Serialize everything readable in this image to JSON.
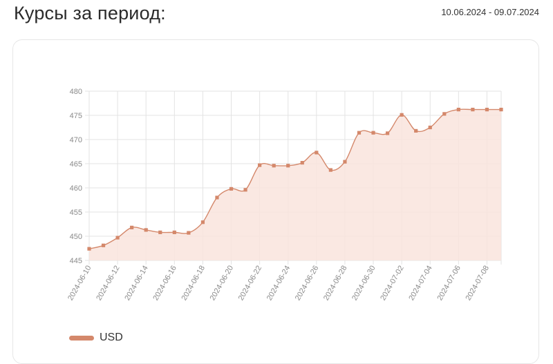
{
  "page": {
    "title": "Курсы за период:",
    "date_range": "10.06.2024 - 09.07.2024"
  },
  "colors": {
    "line": "#d4886b",
    "fill": "#f9e4dd",
    "grid": "#e3e3e3"
  },
  "chart_data": {
    "type": "area",
    "title": "",
    "xlabel": "",
    "ylabel": "",
    "ylim": [
      445,
      480
    ],
    "yticks": [
      445,
      450,
      455,
      460,
      465,
      470,
      475,
      480
    ],
    "grid": true,
    "legend_position": "bottom-left",
    "x": [
      "2024-06-10",
      "2024-06-11",
      "2024-06-12",
      "2024-06-13",
      "2024-06-14",
      "2024-06-15",
      "2024-06-16",
      "2024-06-17",
      "2024-06-18",
      "2024-06-19",
      "2024-06-20",
      "2024-06-21",
      "2024-06-22",
      "2024-06-23",
      "2024-06-24",
      "2024-06-25",
      "2024-06-26",
      "2024-06-27",
      "2024-06-28",
      "2024-06-29",
      "2024-06-30",
      "2024-07-01",
      "2024-07-02",
      "2024-07-03",
      "2024-07-04",
      "2024-07-05",
      "2024-07-06",
      "2024-07-07",
      "2024-07-08",
      "2024-07-09"
    ],
    "xtick_labels": [
      "2024-06-10",
      "2024-06-12",
      "2024-06-14",
      "2024-06-16",
      "2024-06-18",
      "2024-06-20",
      "2024-06-22",
      "2024-06-24",
      "2024-06-26",
      "2024-06-28",
      "2024-06-30",
      "2024-07-02",
      "2024-07-04",
      "2024-07-06",
      "2024-07-08"
    ],
    "series": [
      {
        "name": "USD",
        "values": [
          447.4,
          448.1,
          449.7,
          451.8,
          451.3,
          450.8,
          450.8,
          450.7,
          452.9,
          458.0,
          459.8,
          459.6,
          464.7,
          464.6,
          464.6,
          465.2,
          467.3,
          463.7,
          465.4,
          471.4,
          471.4,
          471.3,
          475.1,
          471.8,
          472.5,
          475.3,
          476.2,
          476.2,
          476.2,
          476.2
        ]
      }
    ]
  }
}
